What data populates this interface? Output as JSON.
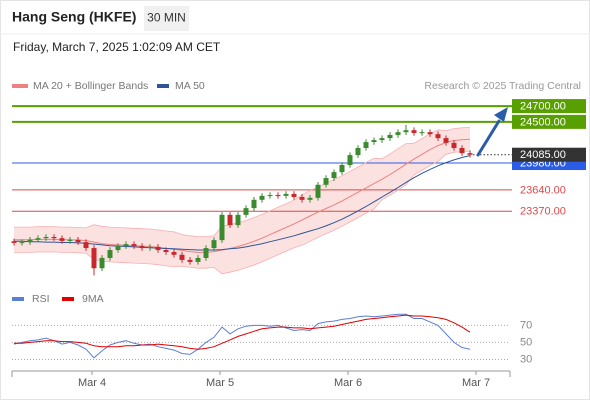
{
  "header": {
    "title": "Hang Seng (HKFE)",
    "interval": "30 MIN",
    "timestamp": "Friday, March 7, 2025 1:02:09 AM CET"
  },
  "chart_data": [
    {
      "type": "candlestick",
      "source": "Research © 2025 Trading Central",
      "up_color": "#3a8a2e",
      "down_color": "#c8282b",
      "x": [
        0,
        1,
        2,
        3,
        4,
        5,
        6,
        7,
        8,
        9,
        10,
        11,
        12,
        13,
        14,
        15,
        16,
        17,
        18,
        19,
        20,
        21,
        22,
        23,
        24,
        25,
        26,
        27,
        28,
        29,
        30,
        31,
        32,
        33,
        34,
        35,
        36,
        37,
        38,
        39,
        40,
        41,
        42,
        43,
        44,
        45,
        46,
        47,
        48,
        49,
        50,
        51,
        52,
        53,
        54,
        55,
        56,
        57
      ],
      "open": [
        22990,
        22970,
        22980,
        23010,
        23030,
        23045,
        23030,
        22995,
        23010,
        22980,
        22905,
        22650,
        22780,
        22880,
        22930,
        22955,
        22930,
        22905,
        22920,
        22880,
        22855,
        22820,
        22755,
        22730,
        22780,
        22905,
        23005,
        23325,
        23195,
        23325,
        23410,
        23515,
        23565,
        23575,
        23565,
        23590,
        23550,
        23515,
        23540,
        23705,
        23790,
        23865,
        23955,
        24080,
        24170,
        24245,
        24270,
        24295,
        24335,
        24370,
        24395,
        24360,
        24370,
        24345,
        24295,
        24235,
        24170,
        24105
      ],
      "high": [
        23025,
        23015,
        23045,
        23065,
        23080,
        23080,
        23065,
        23045,
        23045,
        23015,
        22940,
        22815,
        22915,
        22965,
        22990,
        22990,
        22965,
        22955,
        22955,
        22915,
        22890,
        22855,
        22790,
        22815,
        22940,
        23040,
        23360,
        23360,
        23360,
        23445,
        23550,
        23600,
        23610,
        23610,
        23625,
        23625,
        23585,
        23575,
        23740,
        23825,
        23900,
        23990,
        24115,
        24205,
        24280,
        24305,
        24330,
        24370,
        24405,
        24460,
        24430,
        24405,
        24405,
        24380,
        24330,
        24270,
        24205,
        24140
      ],
      "low": [
        22935,
        22935,
        22945,
        22975,
        22995,
        22995,
        22960,
        22960,
        22945,
        22870,
        22560,
        22615,
        22745,
        22845,
        22895,
        22895,
        22870,
        22870,
        22845,
        22820,
        22785,
        22720,
        22695,
        22695,
        22745,
        22870,
        22970,
        23160,
        23160,
        23290,
        23375,
        23480,
        23530,
        23530,
        23530,
        23515,
        23480,
        23480,
        23505,
        23670,
        23755,
        23830,
        23920,
        24045,
        24135,
        24210,
        24235,
        24260,
        24300,
        24335,
        24325,
        24325,
        24310,
        24260,
        24200,
        24135,
        24070,
        24050
      ],
      "close": [
        22970,
        22980,
        23010,
        23030,
        23045,
        23030,
        22995,
        23010,
        22980,
        22905,
        22650,
        22780,
        22880,
        22930,
        22955,
        22930,
        22905,
        22920,
        22880,
        22855,
        22820,
        22755,
        22730,
        22780,
        22905,
        23005,
        23325,
        23195,
        23325,
        23410,
        23515,
        23565,
        23575,
        23565,
        23590,
        23550,
        23515,
        23540,
        23705,
        23790,
        23865,
        23955,
        24080,
        24170,
        24245,
        24270,
        24295,
        24335,
        24370,
        24395,
        24360,
        24370,
        24345,
        24295,
        24235,
        24170,
        24105,
        24085
      ],
      "series": [
        {
          "name": "MA 20 + Bollinger Bands",
          "color": "#f08080",
          "band_color": "#fcdcdc",
          "values": [
            23010,
            23010,
            23010,
            23015,
            23015,
            23015,
            23010,
            23010,
            23005,
            23000,
            22980,
            22960,
            22950,
            22945,
            22940,
            22935,
            22930,
            22925,
            22915,
            22900,
            22890,
            22875,
            22860,
            22850,
            22850,
            22860,
            22880,
            22900,
            22925,
            22955,
            22990,
            23030,
            23075,
            23120,
            23165,
            23210,
            23260,
            23310,
            23360,
            23405,
            23450,
            23500,
            23555,
            23610,
            23665,
            23720,
            23775,
            23835,
            23900,
            23965,
            24030,
            24090,
            24150,
            24200,
            24240,
            24265,
            24275,
            24280
          ],
          "upper": [
            23170,
            23170,
            23170,
            23175,
            23175,
            23175,
            23170,
            23170,
            23165,
            23160,
            23200,
            23180,
            23170,
            23165,
            23160,
            23155,
            23150,
            23145,
            23135,
            23120,
            23110,
            23075,
            23060,
            23050,
            23050,
            23060,
            23180,
            23200,
            23225,
            23255,
            23290,
            23330,
            23375,
            23420,
            23465,
            23510,
            23580,
            23630,
            23680,
            23725,
            23770,
            23820,
            23875,
            23930,
            23985,
            24040,
            24035,
            24095,
            24160,
            24225,
            24230,
            24290,
            24350,
            24400,
            24390,
            24415,
            24425,
            24430
          ],
          "lower": [
            22850,
            22850,
            22850,
            22855,
            22855,
            22855,
            22850,
            22850,
            22845,
            22840,
            22760,
            22740,
            22730,
            22725,
            22720,
            22715,
            22710,
            22705,
            22695,
            22680,
            22670,
            22675,
            22660,
            22650,
            22650,
            22660,
            22580,
            22600,
            22625,
            22655,
            22690,
            22730,
            22775,
            22820,
            22865,
            22910,
            22940,
            22990,
            23040,
            23085,
            23130,
            23180,
            23235,
            23290,
            23345,
            23400,
            23515,
            23575,
            23640,
            23705,
            23830,
            23890,
            23950,
            24000,
            24090,
            24115,
            24125,
            24130
          ]
        },
        {
          "name": "MA 50",
          "color": "#2e5597",
          "values": [
            22990,
            22990,
            22985,
            22985,
            22980,
            22980,
            22975,
            22975,
            22970,
            22965,
            22955,
            22945,
            22935,
            22930,
            22925,
            22920,
            22915,
            22910,
            22905,
            22900,
            22895,
            22890,
            22885,
            22880,
            22880,
            22880,
            22885,
            22895,
            22905,
            22920,
            22940,
            22960,
            22985,
            23010,
            23035,
            23060,
            23090,
            23120,
            23150,
            23185,
            23225,
            23270,
            23320,
            23375,
            23430,
            23490,
            23550,
            23610,
            23670,
            23735,
            23795,
            23850,
            23900,
            23945,
            23985,
            24020,
            24050,
            24075
          ]
        }
      ],
      "levels": [
        {
          "value": 24700,
          "label": "24700.00",
          "color": "#58a000"
        },
        {
          "value": 24500,
          "label": "24500.00",
          "color": "#58a000"
        },
        {
          "value": 23980,
          "label": "23980.00",
          "color": "#2b5ce6"
        },
        {
          "value": 23640,
          "label": "23640.00",
          "color": "#e04848"
        },
        {
          "value": 23370,
          "label": "23370.00",
          "color": "#e04848"
        }
      ],
      "last_price": {
        "value": 24085,
        "label": "24085.00",
        "color": "#333333"
      },
      "xlim": [
        -0.25,
        62
      ],
      "ylim": [
        22400,
        24840
      ]
    },
    {
      "type": "line",
      "x": [
        0,
        1,
        2,
        3,
        4,
        5,
        6,
        7,
        8,
        9,
        10,
        11,
        12,
        13,
        14,
        15,
        16,
        17,
        18,
        19,
        20,
        21,
        22,
        23,
        24,
        25,
        26,
        27,
        28,
        29,
        30,
        31,
        32,
        33,
        34,
        35,
        36,
        37,
        38,
        39,
        40,
        41,
        42,
        43,
        44,
        45,
        46,
        47,
        48,
        49,
        50,
        51,
        52,
        53,
        54,
        55,
        56,
        57
      ],
      "series": [
        {
          "name": "RSI",
          "color": "#5b7fd6",
          "values": [
            48,
            50,
            52,
            53,
            55,
            52,
            48,
            50,
            47,
            42,
            32,
            40,
            47,
            50,
            52,
            49,
            47,
            48,
            45,
            43,
            41,
            37,
            36,
            42,
            50,
            56,
            68,
            60,
            66,
            69,
            70,
            70,
            69,
            70,
            67,
            64,
            65,
            64,
            72,
            74,
            75,
            77,
            78,
            80,
            81,
            80,
            81,
            82,
            83,
            83,
            78,
            78,
            74,
            70,
            60,
            50,
            44,
            42
          ]
        },
        {
          "name": "9MA",
          "color": "#e00000",
          "values": [
            49,
            49,
            50,
            51,
            52,
            52,
            51,
            51,
            50,
            49,
            46,
            45,
            45,
            45,
            46,
            46,
            47,
            47,
            48,
            47,
            46,
            45,
            43,
            42,
            43,
            45,
            49,
            53,
            57,
            60,
            63,
            66,
            67,
            68,
            68,
            67,
            67,
            66,
            67,
            68,
            69,
            71,
            73,
            75,
            77,
            78,
            79,
            80,
            81,
            82,
            81,
            81,
            80,
            79,
            77,
            73,
            68,
            62
          ]
        }
      ],
      "xlim": [
        -0.25,
        62
      ],
      "ylim": [
        20,
        88
      ],
      "yticks": [
        70,
        50,
        30
      ],
      "xticks": [
        {
          "value": 9.75,
          "label": "Mar 4"
        },
        {
          "value": 25.75,
          "label": "Mar 5"
        },
        {
          "value": 41.75,
          "label": "Mar 6"
        },
        {
          "value": 57.75,
          "label": "Mar 7"
        }
      ]
    }
  ]
}
